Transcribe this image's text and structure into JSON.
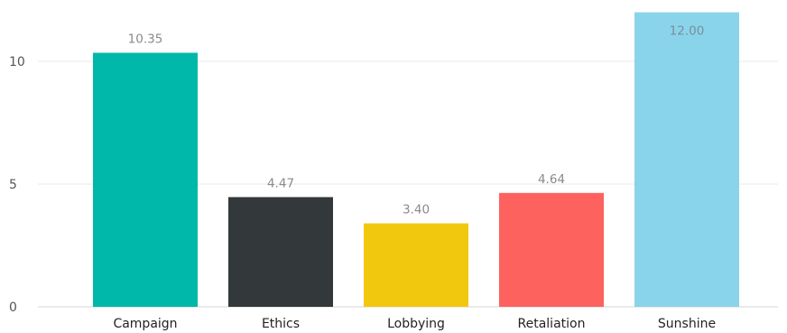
{
  "chart_data": {
    "type": "bar",
    "categories": [
      "Campaign",
      "Ethics",
      "Lobbying",
      "Retaliation",
      "Sunshine"
    ],
    "values": [
      10.35,
      4.47,
      3.4,
      4.64,
      12.0
    ],
    "data_labels": [
      "10.35",
      "4.47",
      "3.40",
      "4.64",
      "12.00"
    ],
    "bar_colors": [
      "#00B8AA",
      "#33383B",
      "#F2C80F",
      "#FD625E",
      "#8AD4EB"
    ],
    "yticks": [
      {
        "value": 0,
        "label": "0"
      },
      {
        "value": 5,
        "label": "5"
      },
      {
        "value": 10,
        "label": "10"
      }
    ],
    "ylim": [
      0,
      12.0
    ],
    "title": "",
    "xlabel": "",
    "ylabel": "",
    "grid": true,
    "legend": "none"
  }
}
